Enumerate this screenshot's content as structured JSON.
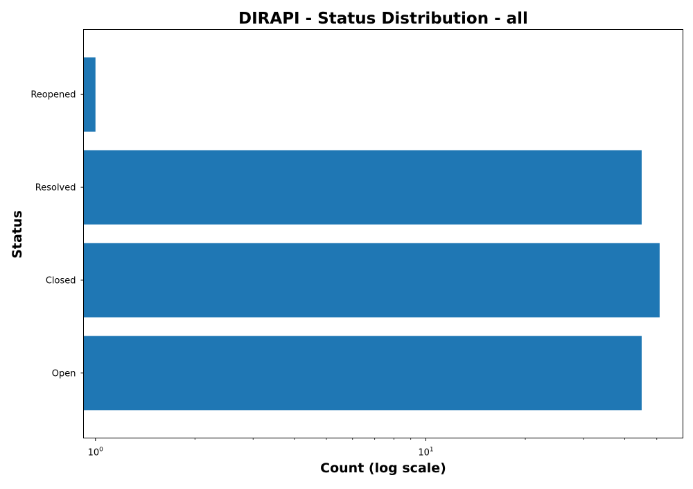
{
  "chart_data": {
    "type": "bar",
    "orientation": "horizontal",
    "title": "DIRAPI - Status Distribution - all",
    "xlabel": "Count (log scale)",
    "ylabel": "Status",
    "x_scale": "log",
    "xlim": [
      0.92,
      60
    ],
    "categories": [
      "Open",
      "Closed",
      "Resolved",
      "Reopened"
    ],
    "values": [
      45,
      51,
      45,
      1
    ],
    "x_major_ticks": [
      {
        "value": 1,
        "base": "10",
        "exp": "0"
      },
      {
        "value": 10,
        "base": "10",
        "exp": "1"
      }
    ],
    "bar_color": "#1f77b4",
    "grid": false,
    "legend": "none"
  }
}
